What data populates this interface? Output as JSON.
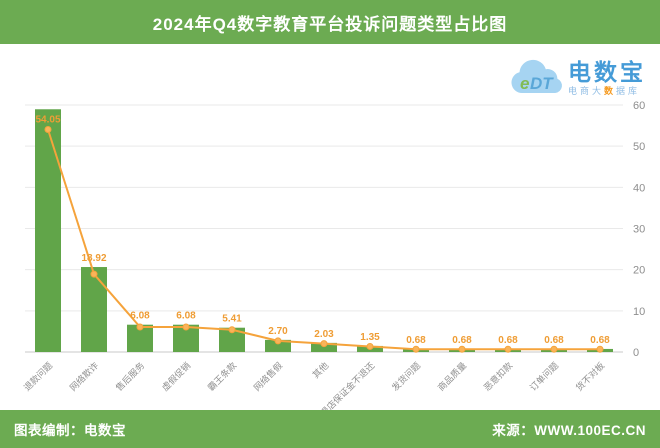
{
  "header": {
    "title": "2024年Q4数字教育平台投诉问题类型占比图"
  },
  "logo": {
    "initials": "eDT",
    "brand": "电数宝",
    "tagline_prefix": "电商大",
    "tagline_highlight": "数",
    "tagline_suffix": "据库"
  },
  "footer": {
    "credit": "图表编制：电数宝",
    "source": "来源：WWW.100EC.CN"
  },
  "colors": {
    "theme_green": "#6cab52",
    "bar_green": "#61a549",
    "line_orange": "#f5a33b",
    "marker_fill": "#f9b45a",
    "value_label_orange": "#ef9d35",
    "grid": "#e9e9e9",
    "axis": "#c8c8c8",
    "tick_text": "#8e8e8e",
    "x_label_text": "#909090",
    "brand_blue": "#459bd7",
    "cloud_blue": "#a6d4f2"
  },
  "chart_data": {
    "type": "bar",
    "title": "2024年Q4数字教育平台投诉问题类型占比图",
    "categories": [
      "退款问题",
      "网络欺诈",
      "售后服务",
      "虚假促销",
      "霸王条款",
      "网络售假",
      "其他",
      "退店保证金不退还",
      "发货问题",
      "商品质量",
      "恶意扣款",
      "订单问题",
      "货不对板"
    ],
    "values": [
      54.05,
      18.92,
      6.08,
      6.08,
      5.41,
      2.7,
      2.03,
      1.35,
      0.68,
      0.68,
      0.68,
      0.68,
      0.68
    ],
    "value_labels": [
      "54.05",
      "18.92",
      "6.08",
      "6.08",
      "5.41",
      "2.70",
      "2.03",
      "1.35",
      "0.68",
      "0.68",
      "0.68",
      "0.68",
      "0.68"
    ],
    "unit": "%",
    "line_overlay": {
      "enabled": true,
      "axis": "right"
    },
    "right_axis": {
      "min": 0,
      "max": 60,
      "ticks": [
        0,
        10,
        20,
        30,
        40,
        50,
        60
      ]
    },
    "bar_axis_max": 55,
    "grid": true,
    "legend": "none",
    "xlabel": "",
    "ylabel": ""
  }
}
